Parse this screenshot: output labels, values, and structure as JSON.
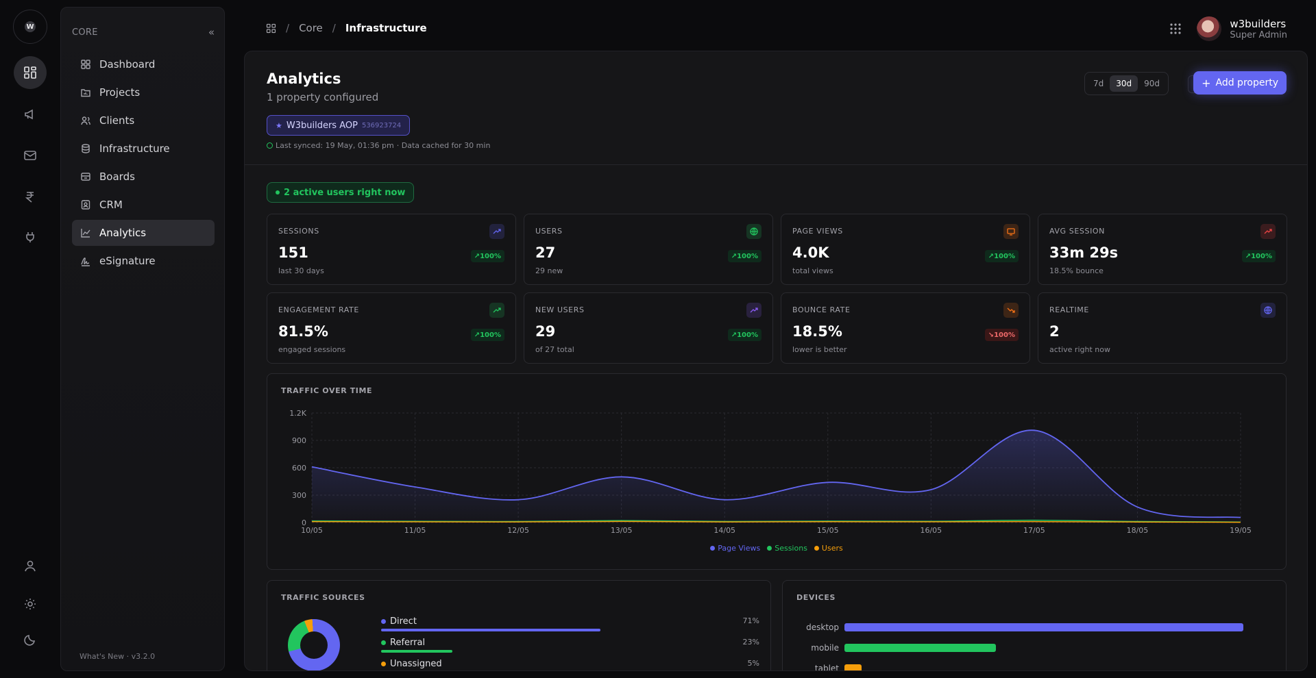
{
  "rail": {
    "logo_text": "W",
    "items": [
      {
        "name": "dashboard-grid-icon"
      },
      {
        "name": "megaphone-icon"
      },
      {
        "name": "mail-icon"
      },
      {
        "name": "rupee-icon"
      },
      {
        "name": "plug-icon"
      }
    ],
    "bottom": [
      {
        "name": "user-icon"
      },
      {
        "name": "settings-gear-icon"
      },
      {
        "name": "moon-icon"
      }
    ]
  },
  "sidebar": {
    "title": "CORE",
    "collapse_icon": "«",
    "items": [
      {
        "label": "Dashboard",
        "icon": "grid-icon"
      },
      {
        "label": "Projects",
        "icon": "folder-chart-icon"
      },
      {
        "label": "Clients",
        "icon": "users-icon"
      },
      {
        "label": "Infrastructure",
        "icon": "database-icon"
      },
      {
        "label": "Boards",
        "icon": "archive-box-icon"
      },
      {
        "label": "CRM",
        "icon": "contact-card-icon"
      },
      {
        "label": "Analytics",
        "icon": "line-chart-icon",
        "active": true
      },
      {
        "label": "eSignature",
        "icon": "signature-icon"
      }
    ],
    "footer": "What's New · v3.2.0"
  },
  "breadcrumb": {
    "items": [
      "Core",
      "Infrastructure"
    ],
    "separator": "/"
  },
  "user": {
    "name": "w3builders",
    "role": "Super Admin"
  },
  "analytics": {
    "title": "Analytics",
    "subtitle": "1 property configured",
    "property": {
      "name": "W3builders AOP",
      "id": "536923724"
    },
    "synced": "Last synced: 19 May, 01:36 pm",
    "cached": "· Data cached for 30 min",
    "ranges": [
      "7d",
      "30d",
      "90d"
    ],
    "selected_range": "30d",
    "add_label": "Add property",
    "active_users": "2 active users right now"
  },
  "stats": [
    {
      "label": "SESSIONS",
      "value": "151",
      "sub": "last 30 days",
      "change": "100%",
      "trend": "up",
      "icon": "trend-up-icon",
      "color": "#6366f1"
    },
    {
      "label": "USERS",
      "value": "27",
      "sub": "29 new",
      "change": "100%",
      "trend": "up",
      "icon": "globe-icon",
      "color": "#22c55e"
    },
    {
      "label": "PAGE VIEWS",
      "value": "4.0K",
      "sub": "total views",
      "change": "100%",
      "trend": "up",
      "icon": "monitor-icon",
      "color": "#f97316"
    },
    {
      "label": "AVG SESSION",
      "value": "33m 29s",
      "sub": "18.5% bounce",
      "change": "100%",
      "trend": "up",
      "icon": "trend-up-icon",
      "color": "#ef4444"
    },
    {
      "label": "ENGAGEMENT RATE",
      "value": "81.5%",
      "sub": "engaged sessions",
      "change": "100%",
      "trend": "up",
      "icon": "trend-up-icon",
      "color": "#22c55e"
    },
    {
      "label": "NEW USERS",
      "value": "29",
      "sub": "of 27 total",
      "change": "100%",
      "trend": "up",
      "icon": "trend-up-icon",
      "color": "#8b5cf6"
    },
    {
      "label": "BOUNCE RATE",
      "value": "18.5%",
      "sub": "lower is better",
      "change": "100%",
      "trend": "down",
      "icon": "trend-down-icon",
      "color": "#f97316"
    },
    {
      "label": "REALTIME",
      "value": "2",
      "sub": "active right now",
      "change": "",
      "trend": "none",
      "icon": "globe-icon",
      "color": "#6366f1"
    }
  ],
  "traffic": {
    "title": "TRAFFIC OVER TIME"
  },
  "chart_data": {
    "type": "area",
    "title": "TRAFFIC OVER TIME",
    "x": [
      "10/05",
      "11/05",
      "12/05",
      "13/05",
      "14/05",
      "15/05",
      "16/05",
      "17/05",
      "18/05",
      "19/05"
    ],
    "ylim": [
      0,
      1200
    ],
    "yticks": [
      "0",
      "300",
      "600",
      "900",
      "1.2K"
    ],
    "grid": true,
    "legend": "bottom-center",
    "series": [
      {
        "name": "Page Views",
        "color": "#6366f1",
        "values": [
          610,
          390,
          250,
          500,
          250,
          440,
          360,
          1010,
          170,
          55
        ]
      },
      {
        "name": "Sessions",
        "color": "#22c55e",
        "values": [
          18,
          14,
          12,
          22,
          12,
          16,
          14,
          25,
          12,
          6
        ]
      },
      {
        "name": "Users",
        "color": "#f59e0b",
        "values": [
          10,
          8,
          7,
          12,
          7,
          9,
          8,
          10,
          6,
          3
        ]
      }
    ]
  },
  "sources": {
    "title": "TRAFFIC SOURCES",
    "items": [
      {
        "label": "Direct",
        "pct": "71%",
        "value": 71,
        "color": "#6366f1"
      },
      {
        "label": "Referral",
        "pct": "23%",
        "value": 23,
        "color": "#22c55e"
      },
      {
        "label": "Unassigned",
        "pct": "5%",
        "value": 5,
        "color": "#f59e0b"
      }
    ]
  },
  "devices": {
    "title": "DEVICES",
    "items": [
      {
        "label": "desktop",
        "value": 71,
        "color": "#6366f1"
      },
      {
        "label": "mobile",
        "value": 27,
        "color": "#22c55e"
      },
      {
        "label": "tablet",
        "value": 3,
        "color": "#f59e0b"
      }
    ]
  }
}
